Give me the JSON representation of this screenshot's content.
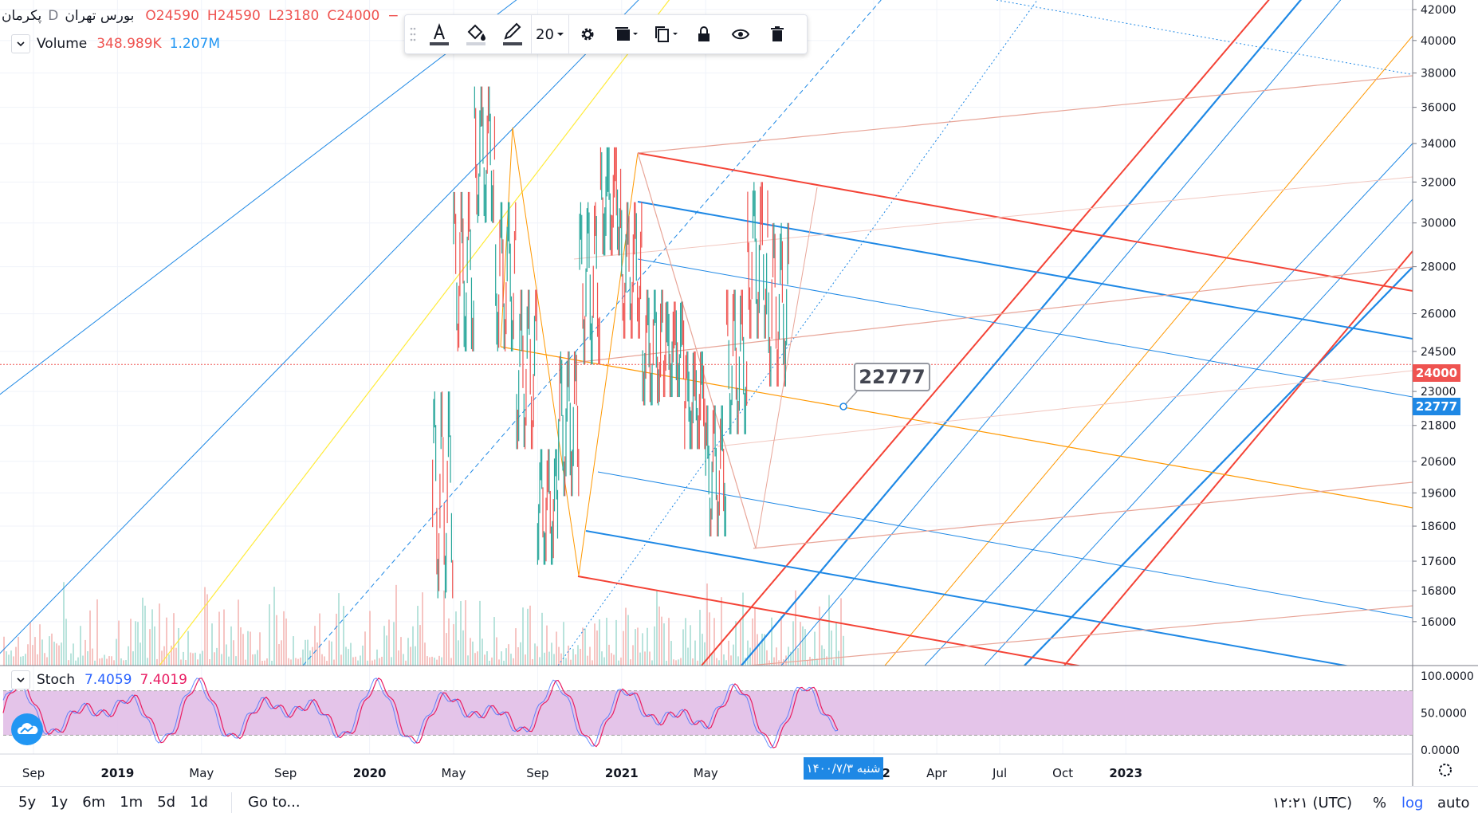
{
  "symbol": {
    "name": "پکرمان",
    "exchange": "بورس تهران",
    "interval": "D",
    "ohlc": {
      "open": "O24590",
      "high": "H24590",
      "low": "L23180",
      "close": "C24000"
    },
    "truncated": "−"
  },
  "volume_legend": {
    "label": "Volume",
    "value1": "348.989K",
    "value2": "1.207M"
  },
  "stoch_legend": {
    "label": "Stoch",
    "k": "7.4059",
    "d": "7.4019"
  },
  "drawing_toolbar": {
    "line_width": "20",
    "icons": [
      "text-icon",
      "fill-icon",
      "pencil-icon",
      "gear-icon",
      "layers-icon",
      "clone-icon",
      "lock-icon",
      "eye-icon",
      "trash-icon"
    ]
  },
  "callout": {
    "text": "22777"
  },
  "price_tags": {
    "last": "24000",
    "cursor": "22777"
  },
  "date_tag": "شنبه ۱۴۰۰/۷/۳",
  "bottom_bar": {
    "ranges": [
      "5y",
      "1y",
      "6m",
      "1m",
      "5d",
      "1d"
    ],
    "goto": "Go to...",
    "time": "۱۲:۲۱ (UTC)",
    "percent": "%",
    "log": "log",
    "auto": "auto"
  },
  "colors": {
    "up": "#26a69a",
    "down": "#ef5350",
    "blue": "#1e88e5",
    "red": "#f44336",
    "orange": "#ff9800",
    "yellow": "#ffeb3b",
    "stoch_k": "#2962ff",
    "stoch_d": "#e91e63",
    "stoch_band": "#e1bee7"
  },
  "chart_data": {
    "type": "candlestick",
    "y_scale": "log",
    "ylim": [
      15600,
      42000
    ],
    "price_ticks": [
      "42000",
      "40000",
      "38000",
      "36000",
      "34000",
      "32000",
      "30000",
      "28000",
      "26000",
      "24500",
      "23000",
      "21800",
      "20600",
      "19600",
      "18600",
      "17600",
      "16800",
      "16000"
    ],
    "time_ticks": [
      "Sep",
      "2019",
      "May",
      "Sep",
      "2020",
      "May",
      "Sep",
      "2021",
      "May",
      "2022",
      "Apr",
      "Jul",
      "Oct",
      "2023"
    ],
    "time_ticks_bold": [
      "2019",
      "2020",
      "2021",
      "2022",
      "2023"
    ],
    "stoch_ticks": [
      "100.0000",
      "50.0000",
      "0.0000"
    ],
    "stoch_band": [
      20,
      80
    ],
    "series": [
      {
        "name": "Price",
        "points": [
          {
            "t": "2020-04",
            "low": 16600,
            "high": 23000
          },
          {
            "t": "2020-05",
            "low": 24500,
            "high": 31500
          },
          {
            "t": "2020-06",
            "low": 30000,
            "high": 37200
          },
          {
            "t": "2020-07",
            "low": 24500,
            "high": 31000
          },
          {
            "t": "2020-08",
            "low": 21000,
            "high": 27000
          },
          {
            "t": "2020-09",
            "low": 17500,
            "high": 21000
          },
          {
            "t": "2020-10",
            "low": 19500,
            "high": 24500
          },
          {
            "t": "2020-11",
            "low": 24000,
            "high": 31000
          },
          {
            "t": "2020-12",
            "low": 28500,
            "high": 33800
          },
          {
            "t": "2021-01",
            "low": 25000,
            "high": 31000
          },
          {
            "t": "2021-02",
            "low": 22500,
            "high": 27000
          },
          {
            "t": "2021-03",
            "low": 22800,
            "high": 26500
          },
          {
            "t": "2021-04",
            "low": 21000,
            "high": 24500
          },
          {
            "t": "2021-05",
            "low": 18300,
            "high": 22500
          },
          {
            "t": "2021-06",
            "low": 21500,
            "high": 27000
          },
          {
            "t": "2021-07",
            "low": 25000,
            "high": 32000
          },
          {
            "t": "2021-08",
            "low": 23180,
            "high": 30000
          }
        ]
      }
    ]
  }
}
